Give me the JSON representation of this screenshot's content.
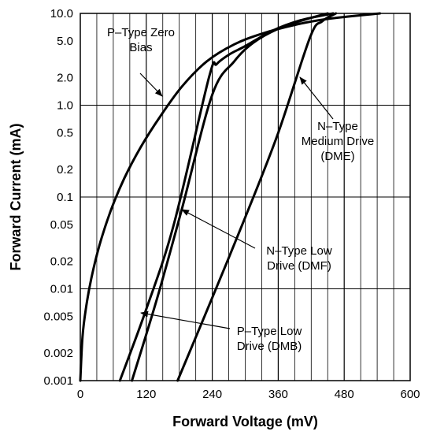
{
  "chart_data": {
    "type": "line",
    "title": "",
    "xlabel": "Forward Voltage (mV)",
    "ylabel": "Forward Current (mA)",
    "xlim": [
      0,
      600
    ],
    "ylim": [
      0.001,
      10.0
    ],
    "y_scale": "log",
    "grid": true,
    "x_ticks": [
      0,
      120,
      240,
      360,
      480,
      600
    ],
    "x_tick_labels": [
      "0",
      "120",
      "240",
      "360",
      "480",
      "600"
    ],
    "y_ticks": [
      0.001,
      0.002,
      0.005,
      0.01,
      0.02,
      0.05,
      0.1,
      0.2,
      0.5,
      1.0,
      2.0,
      5.0,
      10.0
    ],
    "y_tick_labels": [
      "0.001",
      "0.002",
      "0.005",
      "0.01",
      "0.02",
      "0.05",
      "0.1",
      "0.2",
      "0.5",
      "1.0",
      "2.0",
      "5.0",
      "10.0"
    ],
    "series": [
      {
        "name": "P–Type Zero Bias",
        "x": [
          0,
          4,
          10,
          20,
          35,
          55,
          80,
          110,
          145,
          185,
          230,
          280,
          330,
          390,
          450,
          545
        ],
        "y": [
          0.001,
          0.003,
          0.006,
          0.013,
          0.03,
          0.07,
          0.16,
          0.35,
          0.75,
          1.6,
          3.0,
          4.6,
          6.0,
          7.5,
          8.7,
          10.0
        ]
      },
      {
        "name": "P–Type Low Drive (DMB)",
        "x": [
          72,
          120,
          170,
          234,
          248,
          272,
          300,
          350,
          400,
          460
        ],
        "y": [
          0.001,
          0.006,
          0.05,
          2.0,
          2.8,
          3.6,
          4.4,
          6.5,
          8.4,
          10.0
        ]
      },
      {
        "name": "N–Type Low Drive (DMF)",
        "x": [
          94,
          140,
          185,
          240,
          280,
          315,
          360,
          410,
          450
        ],
        "y": [
          0.001,
          0.008,
          0.075,
          1.3,
          3.0,
          4.8,
          6.8,
          8.6,
          10.0
        ]
      },
      {
        "name": "N–Type Medium Drive (DME)",
        "x": [
          177,
          240,
          300,
          360,
          418,
          440,
          465
        ],
        "y": [
          0.001,
          0.008,
          0.06,
          0.5,
          5.5,
          8.2,
          10.0
        ]
      }
    ],
    "annotations": [
      {
        "lines": [
          "P–Type Zero",
          "Bias"
        ],
        "target_series": "P–Type Zero Bias"
      },
      {
        "lines": [
          "N–Type",
          "Medium Drive",
          "(DME)"
        ],
        "target_series": "N–Type Medium Drive (DME)"
      },
      {
        "lines": [
          "N–Type Low",
          "Drive (DMF)"
        ],
        "target_series": "N–Type Low Drive (DMF)"
      },
      {
        "lines": [
          "P–Type Low",
          "Drive (DMB)"
        ],
        "target_series": "P–Type Low Drive (DMB)"
      }
    ]
  }
}
